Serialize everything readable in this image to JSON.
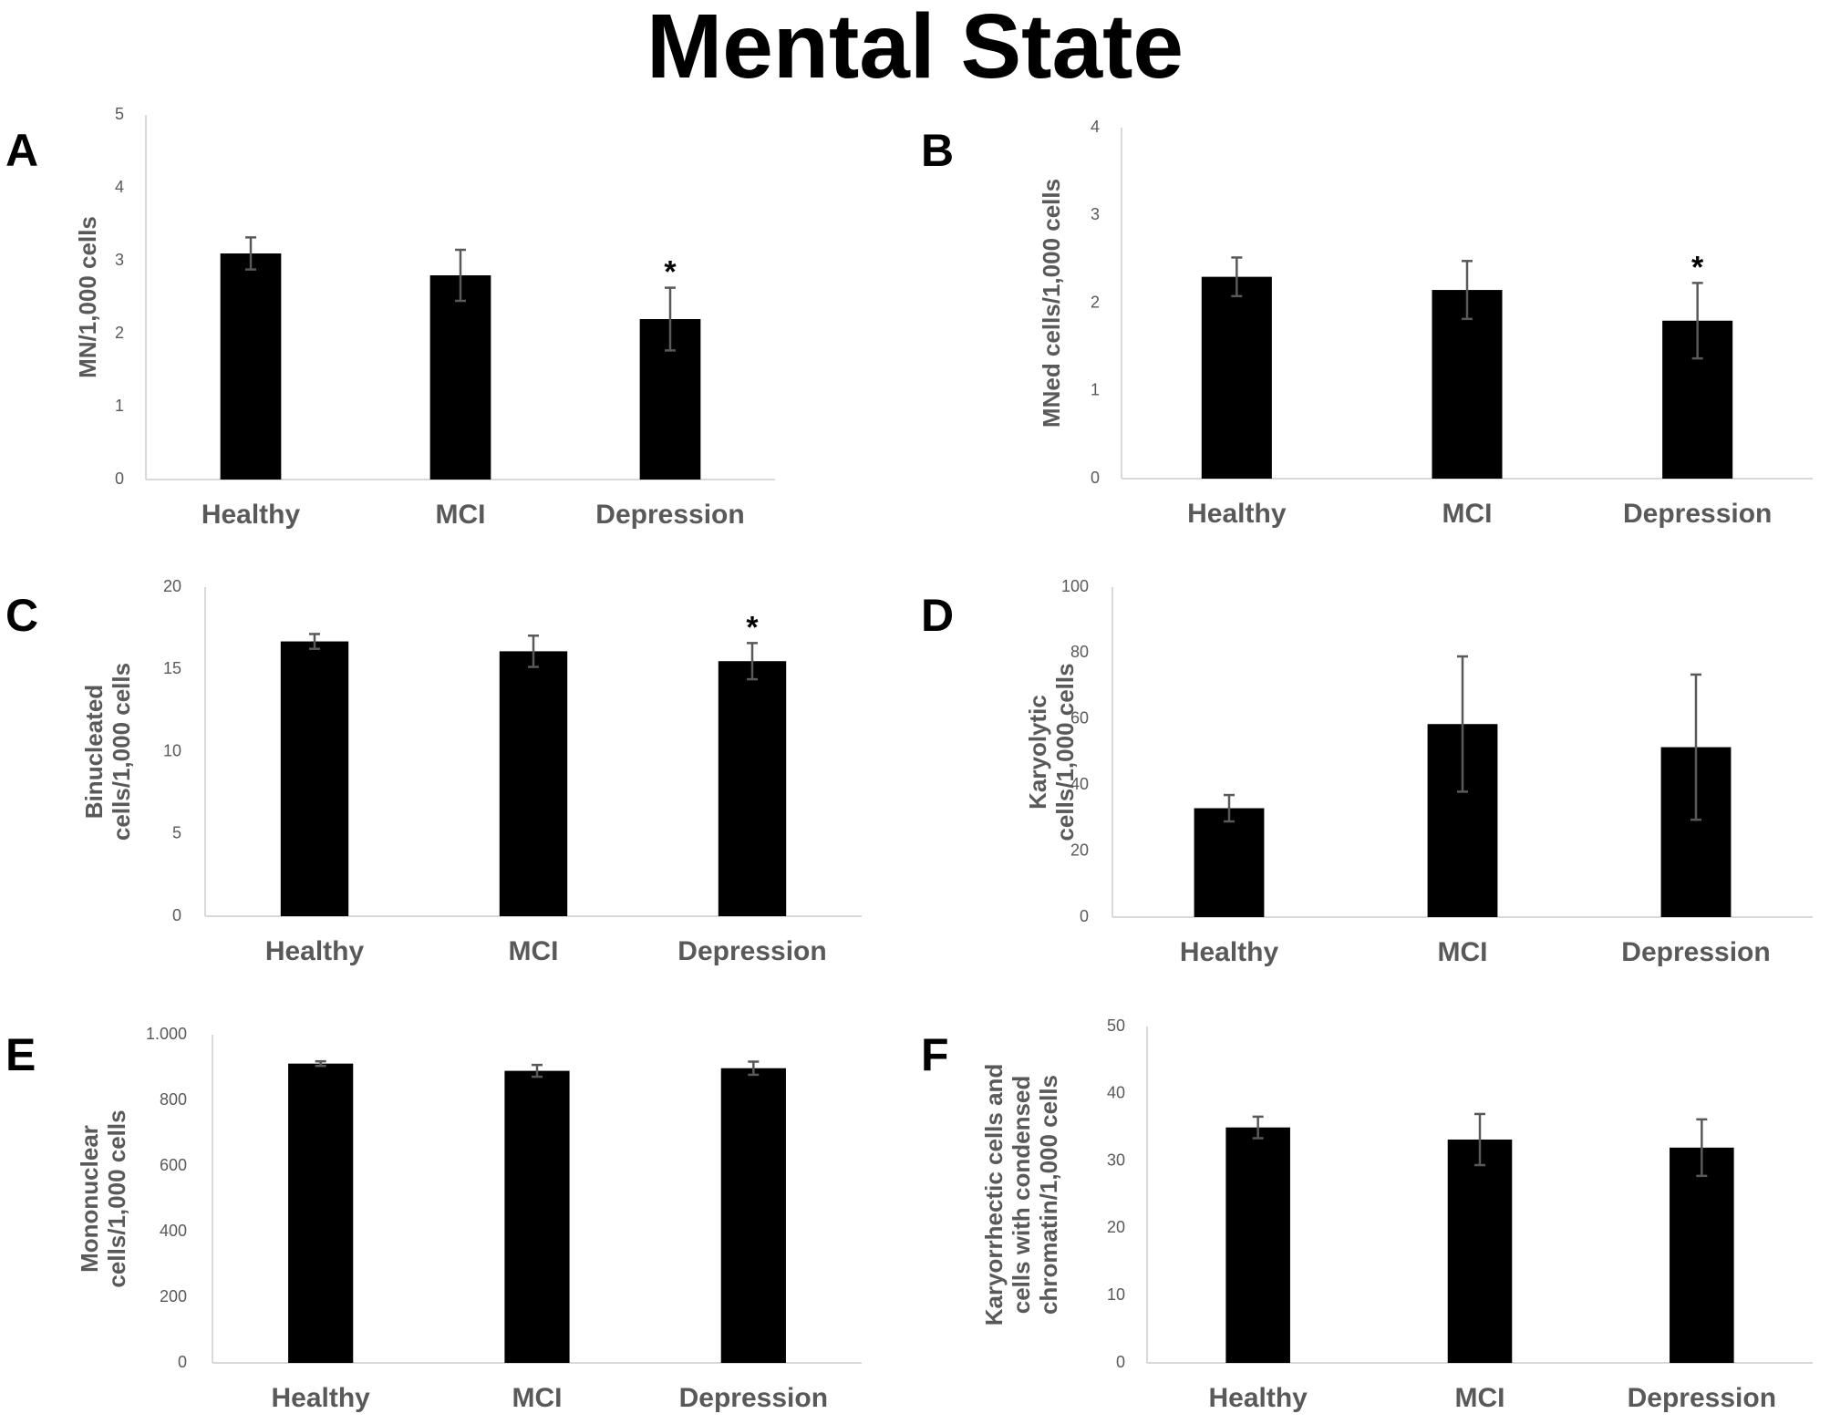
{
  "figure_title": "Mental State",
  "colors": {
    "bar": "#000000",
    "axis": "#d9d9d9",
    "error_bar": "#595959",
    "label": "#595959"
  },
  "chart_data": [
    {
      "panel": "A",
      "type": "bar",
      "title": "",
      "xlabel": "",
      "ylabel": [
        "MN/1,000 cells"
      ],
      "categories": [
        "Healthy",
        "MCI",
        "Depression"
      ],
      "values": [
        3.1,
        2.8,
        2.2
      ],
      "errors": [
        0.22,
        0.35,
        0.43
      ],
      "significance": [
        "",
        "",
        "*"
      ],
      "ylim": [
        0,
        5
      ],
      "yticks": [
        0,
        1,
        2,
        3,
        4,
        5
      ],
      "ytick_labels": [
        "0",
        "1",
        "2",
        "3",
        "4",
        "5"
      ],
      "grid": false
    },
    {
      "panel": "B",
      "type": "bar",
      "title": "",
      "xlabel": "",
      "ylabel": [
        "MNed cells/1,000 cells"
      ],
      "categories": [
        "Healthy",
        "MCI",
        "Depression"
      ],
      "values": [
        2.3,
        2.15,
        1.8
      ],
      "errors": [
        0.22,
        0.33,
        0.43
      ],
      "significance": [
        "",
        "",
        "*"
      ],
      "ylim": [
        0,
        4
      ],
      "yticks": [
        0,
        1,
        2,
        3,
        4
      ],
      "ytick_labels": [
        "0",
        "1",
        "2",
        "3",
        "4"
      ],
      "grid": false
    },
    {
      "panel": "C",
      "type": "bar",
      "title": "",
      "xlabel": "",
      "ylabel": [
        "Binucleated",
        "cells/1,000 cells"
      ],
      "categories": [
        "Healthy",
        "MCI",
        "Depression"
      ],
      "values": [
        16.7,
        16.1,
        15.5
      ],
      "errors": [
        0.45,
        0.95,
        1.1
      ],
      "significance": [
        "",
        "",
        "*"
      ],
      "ylim": [
        0,
        20
      ],
      "yticks": [
        0,
        5,
        10,
        15,
        20
      ],
      "ytick_labels": [
        "0",
        "5",
        "10",
        "15",
        "20"
      ],
      "grid": false
    },
    {
      "panel": "D",
      "type": "bar",
      "title": "",
      "xlabel": "",
      "ylabel": [
        "Karyolytic",
        "cells/1,000 cells"
      ],
      "categories": [
        "Healthy",
        "MCI",
        "Depression"
      ],
      "values": [
        33,
        58.5,
        51.5
      ],
      "errors": [
        4,
        20.5,
        22
      ],
      "significance": [
        "",
        "",
        ""
      ],
      "ylim": [
        0,
        100
      ],
      "yticks": [
        0,
        20,
        40,
        60,
        80,
        100
      ],
      "ytick_labels": [
        "0",
        "20",
        "40",
        "60",
        "80",
        "100"
      ],
      "grid": false
    },
    {
      "panel": "E",
      "type": "bar",
      "title": "",
      "xlabel": "",
      "ylabel": [
        "Mononuclear",
        "cells/1,000 cells"
      ],
      "categories": [
        "Healthy",
        "MCI",
        "Depression"
      ],
      "values": [
        912,
        890,
        898
      ],
      "errors": [
        7,
        18,
        20
      ],
      "significance": [
        "",
        "",
        ""
      ],
      "ylim": [
        0,
        1000
      ],
      "yticks": [
        0,
        200,
        400,
        600,
        800,
        1000
      ],
      "ytick_labels": [
        "0",
        "200",
        "400",
        "600",
        "800",
        "1.000"
      ],
      "grid": false
    },
    {
      "panel": "F",
      "type": "bar",
      "title": "",
      "xlabel": "",
      "ylabel": [
        "Karyorrhectic cells and",
        "cells with condensed",
        "chromatin/1,000 cells"
      ],
      "categories": [
        "Healthy",
        "MCI",
        "Depression"
      ],
      "values": [
        35,
        33.2,
        32
      ],
      "errors": [
        1.6,
        3.8,
        4.2
      ],
      "significance": [
        "",
        "",
        ""
      ],
      "ylim": [
        0,
        50
      ],
      "yticks": [
        0,
        10,
        20,
        30,
        40,
        50
      ],
      "ytick_labels": [
        "0",
        "10",
        "20",
        "30",
        "40",
        "50"
      ],
      "grid": false
    }
  ]
}
